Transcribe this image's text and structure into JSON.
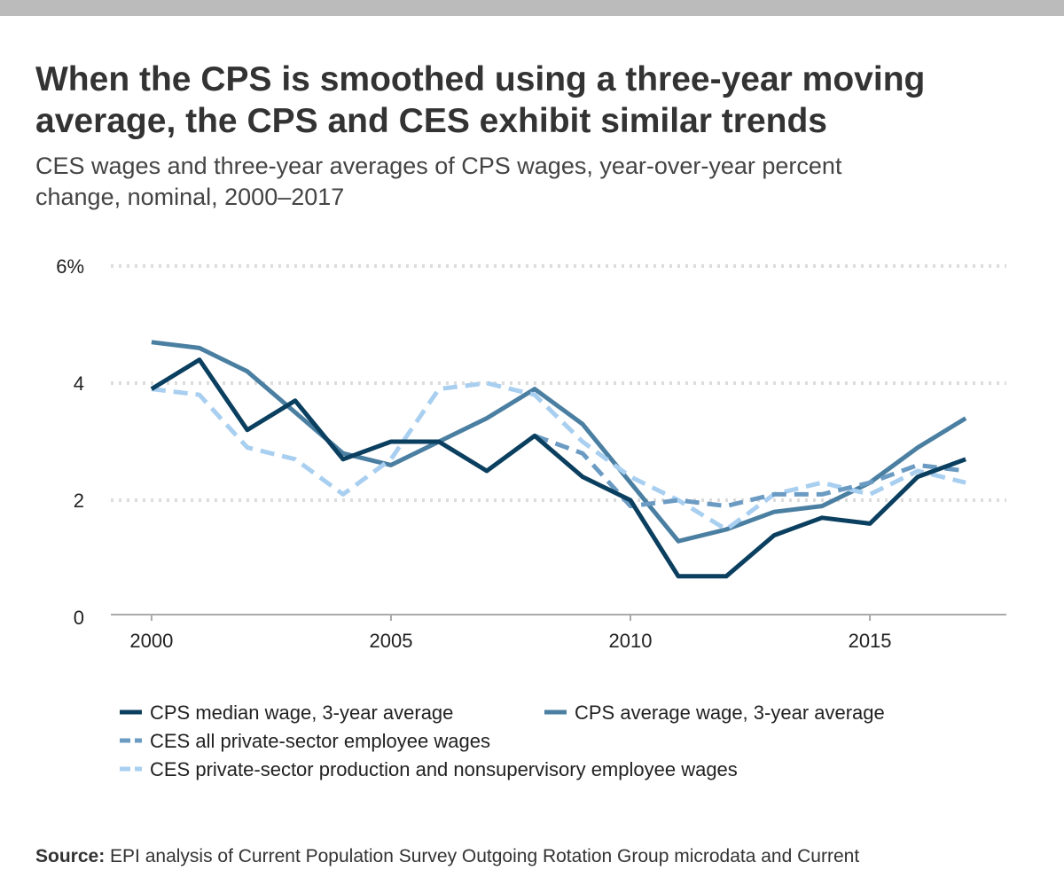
{
  "chart_data": {
    "type": "line",
    "title_lines": [
      "When the CPS is smoothed using a three-year moving",
      "average, the CPS and CES exhibit similar trends"
    ],
    "subtitle_lines": [
      "CES wages and three-year averages of CPS wages, year-over-year percent",
      "change, nominal, 2000–2017"
    ],
    "x": [
      2000,
      2001,
      2002,
      2003,
      2004,
      2005,
      2006,
      2007,
      2008,
      2009,
      2010,
      2011,
      2012,
      2013,
      2014,
      2015,
      2016,
      2017
    ],
    "xlim": [
      1999.15,
      2017.85
    ],
    "xticks": [
      2000,
      2005,
      2010,
      2015
    ],
    "ylim": [
      0,
      6
    ],
    "yticks": [
      0,
      2,
      4,
      {
        "value": 6,
        "label": "6%"
      }
    ],
    "grid": true,
    "series": [
      {
        "name": "CPS median wage, 3-year average",
        "color": "#0b3f5f",
        "dashed": false,
        "values": [
          3.9,
          4.4,
          3.2,
          3.7,
          2.7,
          3.0,
          3.0,
          2.5,
          3.1,
          2.4,
          2.0,
          0.7,
          0.7,
          1.4,
          1.7,
          1.6,
          2.4,
          2.7
        ]
      },
      {
        "name": "CPS average wage, 3-year average",
        "color": "#4a7fa2",
        "dashed": false,
        "values": [
          4.7,
          4.6,
          4.2,
          3.5,
          2.8,
          2.6,
          3.0,
          3.4,
          3.9,
          3.3,
          2.3,
          1.3,
          1.5,
          1.8,
          1.9,
          2.3,
          2.9,
          3.4
        ]
      },
      {
        "name": "CES all private-sector employee wages",
        "color": "#6b9bc3",
        "dashed": true,
        "values": [
          null,
          null,
          null,
          null,
          null,
          null,
          null,
          null,
          3.1,
          2.8,
          1.9,
          2.0,
          1.9,
          2.1,
          2.1,
          2.3,
          2.6,
          2.5
        ]
      },
      {
        "name": "CES private-sector production and nonsupervisory employee wages",
        "color": "#a9cff0",
        "dashed": true,
        "values": [
          3.9,
          3.8,
          2.9,
          2.7,
          2.1,
          2.7,
          3.9,
          4.0,
          3.8,
          3.0,
          2.4,
          2.0,
          1.5,
          2.1,
          2.3,
          2.1,
          2.5,
          2.3
        ]
      }
    ],
    "source_label": "Source:",
    "source": "EPI analysis of Current Population Survey Outgoing Rotation Group microdata and Current"
  }
}
